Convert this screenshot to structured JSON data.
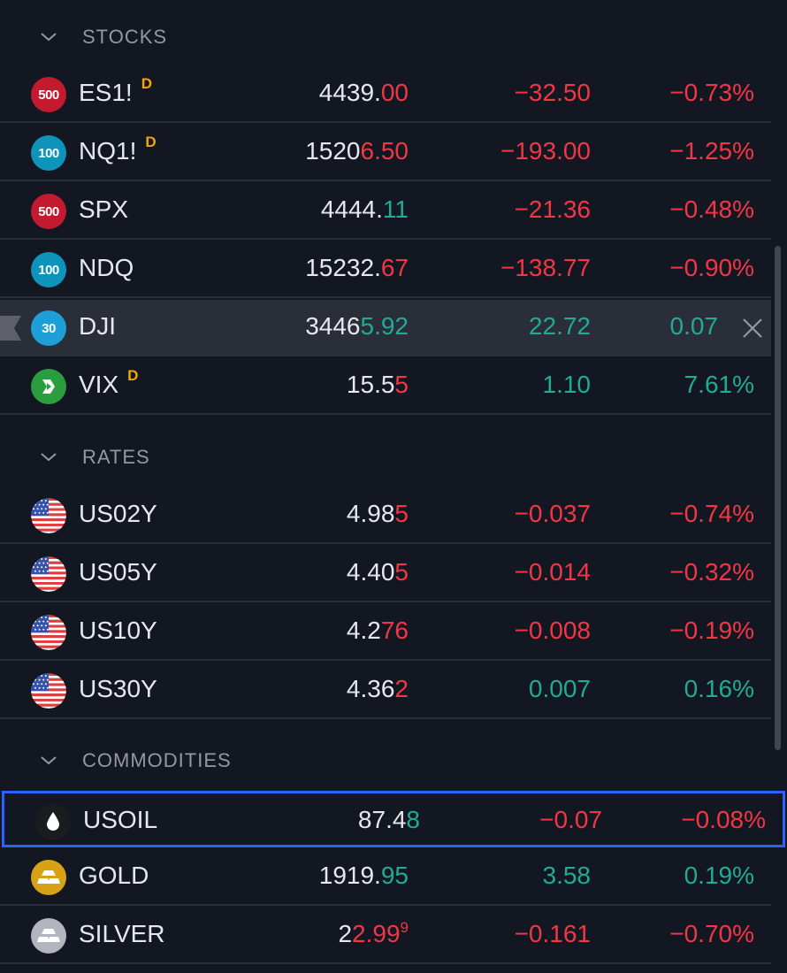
{
  "sections": [
    {
      "title": "STOCKS",
      "rows": [
        {
          "symbol": "ES1!",
          "icon": {
            "name": "sp500-icon",
            "text": "500",
            "color": "#c41a2f"
          },
          "delayed": "D",
          "price_main": "4439.",
          "price_tail": "00",
          "tail_dir": "neg",
          "change": "−32.50",
          "change_pct": "−0.73%",
          "dir": "neg"
        },
        {
          "symbol": "NQ1!",
          "icon": {
            "name": "nasdaq100-icon",
            "text": "100",
            "color": "#0e93ba"
          },
          "delayed": "D",
          "price_main": "1520",
          "price_tail": "6.50",
          "tail_dir": "neg",
          "change": "−193.00",
          "change_pct": "−1.25%",
          "dir": "neg"
        },
        {
          "symbol": "SPX",
          "icon": {
            "name": "sp500-icon",
            "text": "500",
            "color": "#c41a2f"
          },
          "price_main": "4444.",
          "price_tail": "11",
          "tail_dir": "pos",
          "change": "−21.36",
          "change_pct": "−0.48%",
          "dir": "neg"
        },
        {
          "symbol": "NDQ",
          "icon": {
            "name": "nasdaq100-icon",
            "text": "100",
            "color": "#0e93ba"
          },
          "price_main": "15232.",
          "price_tail": "67",
          "tail_dir": "neg",
          "change": "−138.77",
          "change_pct": "−0.90%",
          "dir": "neg"
        },
        {
          "symbol": "DJI",
          "icon": {
            "name": "dow30-icon",
            "text": "30",
            "color": "#1e9fd8"
          },
          "price_main": "3446",
          "price_tail": "5.92",
          "tail_dir": "pos",
          "change": "22.72",
          "change_pct": "0.07",
          "dir": "pos",
          "selected": true
        },
        {
          "symbol": "VIX",
          "icon": {
            "name": "vix-icon",
            "text": "",
            "color": "#2a9d3f"
          },
          "delayed": "D",
          "price_main": "15.5",
          "price_tail": "5",
          "tail_dir": "neg",
          "change": "1.10",
          "change_pct": "7.61%",
          "dir": "pos"
        }
      ]
    },
    {
      "title": "RATES",
      "rows": [
        {
          "symbol": "US02Y",
          "icon": {
            "name": "us-flag-icon"
          },
          "price_main": "4.98",
          "price_tail": "5",
          "tail_dir": "neg",
          "change": "−0.037",
          "change_pct": "−0.74%",
          "dir": "neg"
        },
        {
          "symbol": "US05Y",
          "icon": {
            "name": "us-flag-icon"
          },
          "price_main": "4.40",
          "price_tail": "5",
          "tail_dir": "neg",
          "change": "−0.014",
          "change_pct": "−0.32%",
          "dir": "neg"
        },
        {
          "symbol": "US10Y",
          "icon": {
            "name": "us-flag-icon"
          },
          "price_main": "4.2",
          "price_tail": "76",
          "tail_dir": "neg",
          "change": "−0.008",
          "change_pct": "−0.19%",
          "dir": "neg"
        },
        {
          "symbol": "US30Y",
          "icon": {
            "name": "us-flag-icon"
          },
          "price_main": "4.36",
          "price_tail": "2",
          "tail_dir": "neg",
          "change": "0.007",
          "change_pct": "0.16%",
          "dir": "pos"
        }
      ]
    },
    {
      "title": "COMMODITIES",
      "rows": [
        {
          "symbol": "USOIL",
          "icon": {
            "name": "oil-drop-icon",
            "color": "#1b1c20"
          },
          "price_main": "87.4",
          "price_tail": "8",
          "tail_dir": "pos",
          "change": "−0.07",
          "change_pct": "−0.08%",
          "dir": "neg",
          "focused": true
        },
        {
          "symbol": "GOLD",
          "icon": {
            "name": "gold-bars-icon",
            "color": "#d7a215"
          },
          "price_main": "1919.",
          "price_tail": "95",
          "tail_dir": "pos",
          "change": "3.58",
          "change_pct": "0.19%",
          "dir": "pos"
        },
        {
          "symbol": "SILVER",
          "icon": {
            "name": "silver-bars-icon",
            "color": "#b2b5be"
          },
          "price_main": "2",
          "price_tail": "2.99",
          "price_sup": "9",
          "tail_dir": "neg",
          "change": "−0.161",
          "change_pct": "−0.70%",
          "dir": "neg"
        }
      ]
    }
  ]
}
